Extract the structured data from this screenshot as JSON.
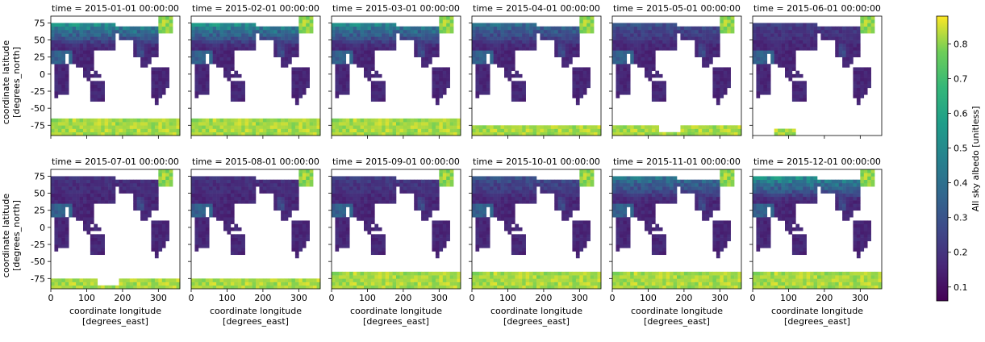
{
  "figure": {
    "row_ylabel_line1": "coordinate latitude",
    "row_ylabel_line2": "[degrees_north]",
    "col_xlabel_line1": "coordinate longitude",
    "col_xlabel_line2": "[degrees_east]",
    "colorbar_label": "All sky albedo [unitless]"
  },
  "chart_data": {
    "type": "heatmap",
    "layout": "facet grid 2 rows x 6 columns",
    "variable": "All sky albedo [unitless]",
    "colormap": "viridis",
    "color_range": [
      0.06,
      0.88
    ],
    "colorbar_ticks": [
      0.1,
      0.2,
      0.3,
      0.4,
      0.5,
      0.6,
      0.7,
      0.8
    ],
    "xlim": [
      0,
      360
    ],
    "ylim": [
      -90,
      85
    ],
    "x_ticks": [
      0,
      100,
      200,
      300
    ],
    "y_ticks": [
      75,
      50,
      25,
      0,
      -25,
      -50,
      -75
    ],
    "grid": false,
    "panels": [
      {
        "title": "time = 2015-01-01 00:00:00",
        "snow_level": 0.55,
        "antarctic_extent": "large"
      },
      {
        "title": "time = 2015-02-01 00:00:00",
        "snow_level": 0.55,
        "antarctic_extent": "large"
      },
      {
        "title": "time = 2015-03-01 00:00:00",
        "snow_level": 0.5,
        "antarctic_extent": "large"
      },
      {
        "title": "time = 2015-04-01 00:00:00",
        "snow_level": 0.35,
        "antarctic_extent": "medium"
      },
      {
        "title": "time = 2015-05-01 00:00:00",
        "snow_level": 0.2,
        "antarctic_extent": "partial"
      },
      {
        "title": "time = 2015-06-01 00:00:00",
        "snow_level": 0.1,
        "antarctic_extent": "sparse"
      },
      {
        "title": "time = 2015-07-01 00:00:00",
        "snow_level": 0.05,
        "antarctic_extent": "partial"
      },
      {
        "title": "time = 2015-08-01 00:00:00",
        "snow_level": 0.05,
        "antarctic_extent": "medium"
      },
      {
        "title": "time = 2015-09-01 00:00:00",
        "snow_level": 0.1,
        "antarctic_extent": "large"
      },
      {
        "title": "time = 2015-10-01 00:00:00",
        "snow_level": 0.2,
        "antarctic_extent": "large"
      },
      {
        "title": "time = 2015-11-01 00:00:00",
        "snow_level": 0.4,
        "antarctic_extent": "large"
      },
      {
        "title": "time = 2015-12-01 00:00:00",
        "snow_level": 0.55,
        "antarctic_extent": "large"
      }
    ]
  }
}
